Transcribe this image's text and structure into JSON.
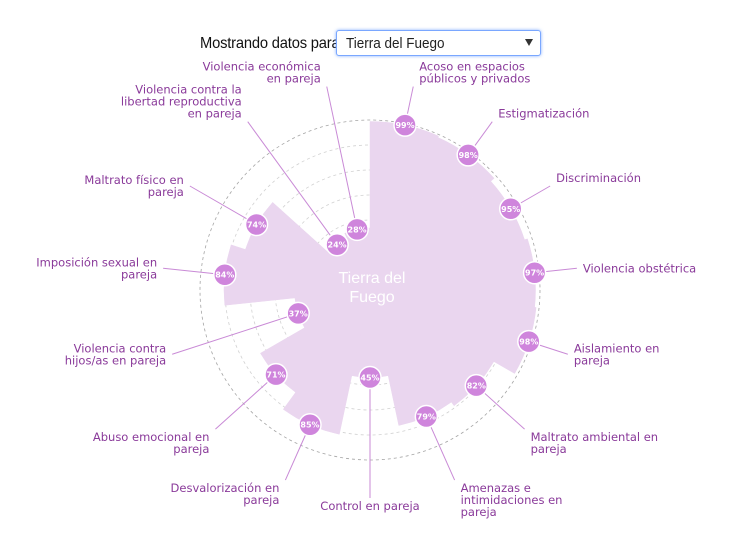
{
  "selector": {
    "label": "Mostrando datos para:",
    "selected": "Tierra del Fuego"
  },
  "colors": {
    "fill": "#ead6ef",
    "dot": "#cf85dc",
    "leader": "#c98ad6",
    "label": "#8a3a9a",
    "grid": "#9a9a9a"
  },
  "chart_data": {
    "type": "radial-bar",
    "center_label": [
      "Tierra del",
      "Fuego"
    ],
    "range": [
      0,
      100
    ],
    "categories": [
      {
        "label": [
          "Acoso en espacios",
          "públicos y privados"
        ],
        "value": 99,
        "pct": "99%"
      },
      {
        "label": [
          "Estigmatización"
        ],
        "value": 98,
        "pct": "98%"
      },
      {
        "label": [
          "Discriminación"
        ],
        "value": 95,
        "pct": "95%"
      },
      {
        "label": [
          "Violencia obstétrica"
        ],
        "value": 97,
        "pct": "97%"
      },
      {
        "label": [
          "Aislamiento en",
          "pareja"
        ],
        "value": 98,
        "pct": "98%"
      },
      {
        "label": [
          "Maltrato ambiental en",
          "pareja"
        ],
        "value": 82,
        "pct": "82%"
      },
      {
        "label": [
          "Amenazas e",
          "intimidaciones en",
          "pareja"
        ],
        "value": 79,
        "pct": "79%"
      },
      {
        "label": [
          "Control en pareja"
        ],
        "value": 45,
        "pct": "45%"
      },
      {
        "label": [
          "Desvalorización en",
          "pareja"
        ],
        "value": 85,
        "pct": "85%"
      },
      {
        "label": [
          "Abuso emocional en",
          "pareja"
        ],
        "value": 71,
        "pct": "71%"
      },
      {
        "label": [
          "Violencia contra",
          "hijos/as en pareja"
        ],
        "value": 37,
        "pct": "37%"
      },
      {
        "label": [
          "Imposición sexual en",
          "pareja"
        ],
        "value": 84,
        "pct": "84%"
      },
      {
        "label": [
          "Maltrato físico en",
          "pareja"
        ],
        "value": 74,
        "pct": "74%"
      },
      {
        "label": [
          "Violencia contra la",
          "libertad reproductiva",
          "en pareja"
        ],
        "value": 24,
        "pct": "24%"
      },
      {
        "label": [
          "Violencia económica",
          "en pareja"
        ],
        "value": 28,
        "pct": "28%"
      }
    ]
  }
}
